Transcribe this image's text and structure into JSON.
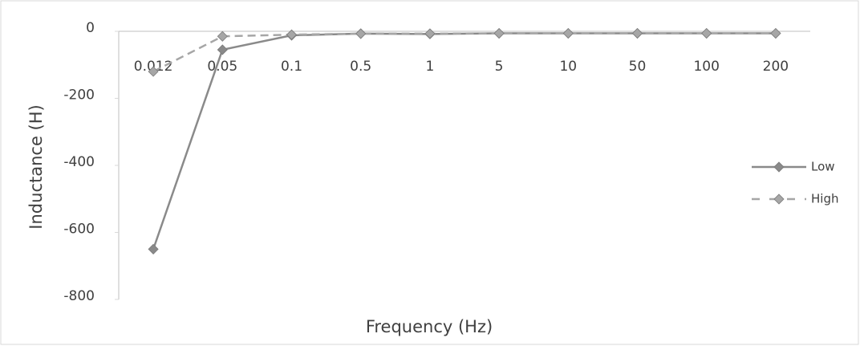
{
  "chart_data": {
    "type": "line",
    "x_label": "Frequency (Hz)",
    "y_label": "Inductance (H)",
    "categories": [
      "0.012",
      "0.05",
      "0.1",
      "0.5",
      "1",
      "5",
      "10",
      "50",
      "100",
      "200"
    ],
    "series": [
      {
        "name": "Low",
        "color": "#8a8a8a",
        "dashed": false,
        "values": [
          -650,
          -55,
          -12,
          -7,
          -8,
          -6,
          -6,
          -6,
          -6,
          -6
        ]
      },
      {
        "name": "High",
        "color": "#a6a6a6",
        "dashed": true,
        "values": [
          -120,
          -15,
          -10,
          -7,
          -7,
          -6,
          -6,
          -6,
          -6,
          -6
        ]
      }
    ],
    "ylim": [
      -800,
      0
    ],
    "yticks": [
      -800,
      -600,
      -400,
      -200,
      0
    ],
    "grid": false,
    "legend": "right"
  }
}
